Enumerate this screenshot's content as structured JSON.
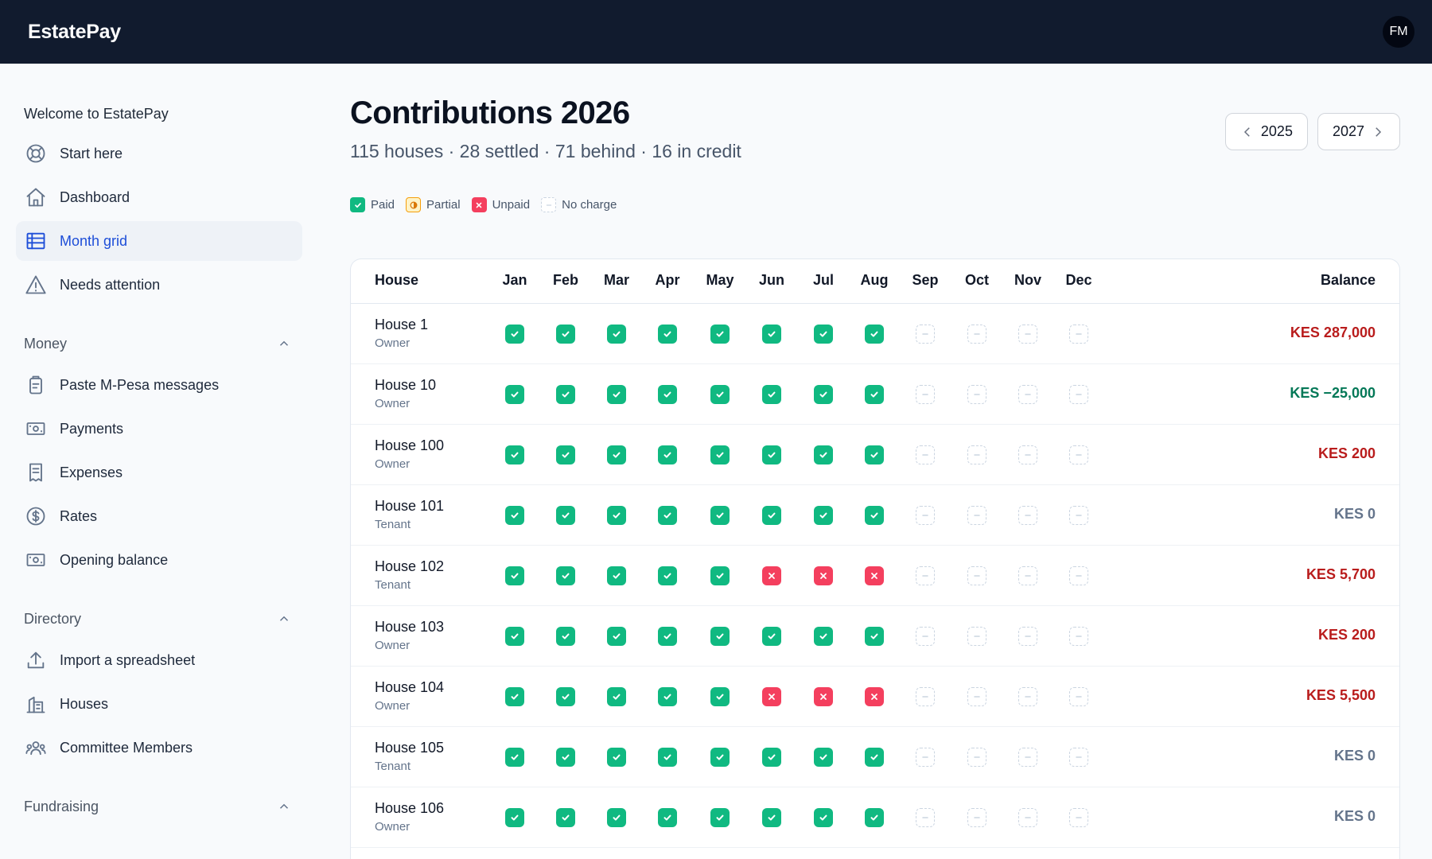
{
  "app": {
    "brand": "EstatePay",
    "avatar_initials": "FM"
  },
  "sidebar": {
    "welcome": "Welcome to EstatePay",
    "top_items": [
      {
        "label": "Start here",
        "icon": "lifebuoy-icon"
      },
      {
        "label": "Dashboard",
        "icon": "home-icon"
      },
      {
        "label": "Month grid",
        "icon": "table-icon",
        "active": true
      },
      {
        "label": "Needs attention",
        "icon": "warning-icon"
      }
    ],
    "sections": [
      {
        "title": "Money",
        "items": [
          {
            "label": "Paste M-Pesa messages",
            "icon": "clipboard-icon"
          },
          {
            "label": "Payments",
            "icon": "banknote-icon"
          },
          {
            "label": "Expenses",
            "icon": "receipt-icon"
          },
          {
            "label": "Rates",
            "icon": "dollar-icon"
          },
          {
            "label": "Opening balance",
            "icon": "banknote-icon"
          }
        ]
      },
      {
        "title": "Directory",
        "items": [
          {
            "label": "Import a spreadsheet",
            "icon": "upload-icon"
          },
          {
            "label": "Houses",
            "icon": "buildings-icon"
          },
          {
            "label": "Committee Members",
            "icon": "users-icon"
          }
        ]
      },
      {
        "title": "Fundraising",
        "items": []
      }
    ]
  },
  "main": {
    "title": "Contributions 2026",
    "subtitle": "115 houses · 28 settled · 71 behind · 16 in credit",
    "prev_year": "2025",
    "next_year": "2027",
    "legend": [
      {
        "key": "paid",
        "label": "Paid"
      },
      {
        "key": "partial",
        "label": "Partial"
      },
      {
        "key": "unpaid",
        "label": "Unpaid"
      },
      {
        "key": "nocharge",
        "label": "No charge"
      }
    ],
    "colors": {
      "paid": "#10b981",
      "unpaid": "#f43f5e",
      "partial": "#f59e0b",
      "debt": "#b91c1c",
      "credit": "#047857",
      "zero": "#64748b"
    }
  },
  "table": {
    "house_header": "House",
    "balance_header": "Balance",
    "months": [
      "Jan",
      "Feb",
      "Mar",
      "Apr",
      "May",
      "Jun",
      "Jul",
      "Aug",
      "Sep",
      "Oct",
      "Nov",
      "Dec"
    ],
    "rows": [
      {
        "house": "House 1",
        "role": "Owner",
        "status": [
          "P",
          "P",
          "P",
          "P",
          "P",
          "P",
          "P",
          "P",
          "N",
          "N",
          "N",
          "N"
        ],
        "balance": "KES 287,000",
        "balance_type": "debt"
      },
      {
        "house": "House 10",
        "role": "Owner",
        "status": [
          "P",
          "P",
          "P",
          "P",
          "P",
          "P",
          "P",
          "P",
          "N",
          "N",
          "N",
          "N"
        ],
        "balance": "KES −25,000",
        "balance_type": "credit"
      },
      {
        "house": "House 100",
        "role": "Owner",
        "status": [
          "P",
          "P",
          "P",
          "P",
          "P",
          "P",
          "P",
          "P",
          "N",
          "N",
          "N",
          "N"
        ],
        "balance": "KES 200",
        "balance_type": "debt"
      },
      {
        "house": "House 101",
        "role": "Tenant",
        "status": [
          "P",
          "P",
          "P",
          "P",
          "P",
          "P",
          "P",
          "P",
          "N",
          "N",
          "N",
          "N"
        ],
        "balance": "KES 0",
        "balance_type": "zero"
      },
      {
        "house": "House 102",
        "role": "Tenant",
        "status": [
          "P",
          "P",
          "P",
          "P",
          "P",
          "U",
          "U",
          "U",
          "N",
          "N",
          "N",
          "N"
        ],
        "balance": "KES 5,700",
        "balance_type": "debt"
      },
      {
        "house": "House 103",
        "role": "Owner",
        "status": [
          "P",
          "P",
          "P",
          "P",
          "P",
          "P",
          "P",
          "P",
          "N",
          "N",
          "N",
          "N"
        ],
        "balance": "KES 200",
        "balance_type": "debt"
      },
      {
        "house": "House 104",
        "role": "Owner",
        "status": [
          "P",
          "P",
          "P",
          "P",
          "P",
          "U",
          "U",
          "U",
          "N",
          "N",
          "N",
          "N"
        ],
        "balance": "KES 5,500",
        "balance_type": "debt"
      },
      {
        "house": "House 105",
        "role": "Tenant",
        "status": [
          "P",
          "P",
          "P",
          "P",
          "P",
          "P",
          "P",
          "P",
          "N",
          "N",
          "N",
          "N"
        ],
        "balance": "KES 0",
        "balance_type": "zero"
      },
      {
        "house": "House 106",
        "role": "Owner",
        "status": [
          "P",
          "P",
          "P",
          "P",
          "P",
          "P",
          "P",
          "P",
          "N",
          "N",
          "N",
          "N"
        ],
        "balance": "KES 0",
        "balance_type": "zero"
      }
    ]
  }
}
